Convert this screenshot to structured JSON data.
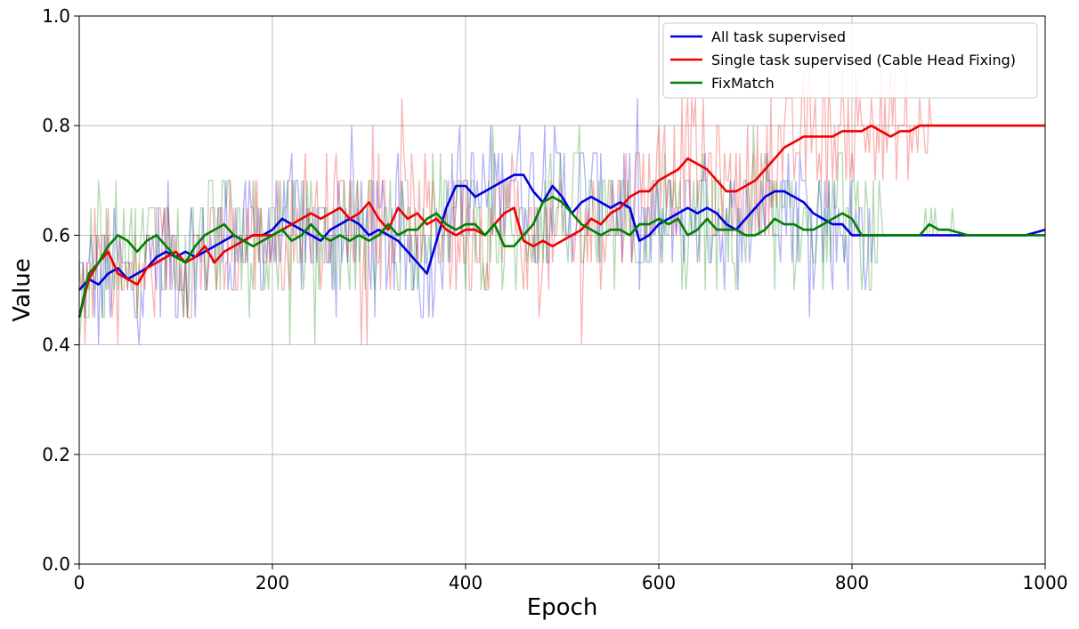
{
  "chart_data": {
    "type": "line",
    "title": "",
    "xlabel": "Epoch",
    "ylabel": "Value",
    "xlim": [
      0,
      1000
    ],
    "ylim": [
      0,
      1
    ],
    "xticks": [
      "0",
      "200",
      "400",
      "600",
      "800",
      "1000"
    ],
    "yticks": [
      "0.0",
      "0.2",
      "0.4",
      "0.6",
      "0.8",
      "1.0"
    ],
    "grid": true,
    "legend_position": "top-right",
    "series": [
      {
        "name": "All task supervised",
        "color": "#0000dd",
        "raw_visible": true,
        "x": [
          0,
          10,
          20,
          30,
          40,
          50,
          60,
          70,
          80,
          90,
          100,
          110,
          120,
          130,
          140,
          150,
          160,
          170,
          180,
          190,
          200,
          210,
          220,
          230,
          240,
          250,
          260,
          270,
          280,
          290,
          300,
          310,
          320,
          330,
          340,
          350,
          360,
          370,
          380,
          390,
          400,
          410,
          420,
          430,
          440,
          450,
          460,
          470,
          480,
          490,
          500,
          510,
          520,
          530,
          540,
          550,
          560,
          570,
          580,
          590,
          600,
          610,
          620,
          630,
          640,
          650,
          660,
          670,
          680,
          690,
          700,
          710,
          720,
          730,
          740,
          750,
          760,
          770,
          780,
          790,
          800,
          810,
          820,
          830,
          840,
          850,
          860,
          870,
          880,
          890,
          900,
          920,
          940,
          960,
          980,
          1000
        ],
        "y": [
          0.5,
          0.52,
          0.51,
          0.53,
          0.54,
          0.52,
          0.53,
          0.54,
          0.56,
          0.57,
          0.56,
          0.57,
          0.56,
          0.57,
          0.58,
          0.59,
          0.6,
          0.59,
          0.6,
          0.6,
          0.61,
          0.63,
          0.62,
          0.61,
          0.6,
          0.59,
          0.61,
          0.62,
          0.63,
          0.62,
          0.6,
          0.61,
          0.6,
          0.59,
          0.57,
          0.55,
          0.53,
          0.59,
          0.65,
          0.69,
          0.69,
          0.67,
          0.68,
          0.69,
          0.7,
          0.71,
          0.71,
          0.68,
          0.66,
          0.69,
          0.67,
          0.64,
          0.66,
          0.67,
          0.66,
          0.65,
          0.66,
          0.65,
          0.59,
          0.6,
          0.62,
          0.63,
          0.64,
          0.65,
          0.64,
          0.65,
          0.64,
          0.62,
          0.61,
          0.63,
          0.65,
          0.67,
          0.68,
          0.68,
          0.67,
          0.66,
          0.64,
          0.63,
          0.62,
          0.62,
          0.6,
          0.6,
          0.6,
          0.6,
          0.6,
          0.6,
          0.6,
          0.6,
          0.6,
          0.6,
          0.6,
          0.6,
          0.6,
          0.6,
          0.6,
          0.61
        ]
      },
      {
        "name": "Single task supervised (Cable Head Fixing)",
        "color": "#ee0000",
        "raw_visible": true,
        "x": [
          0,
          10,
          20,
          30,
          40,
          50,
          60,
          70,
          80,
          90,
          100,
          110,
          120,
          130,
          140,
          150,
          160,
          170,
          180,
          190,
          200,
          210,
          220,
          230,
          240,
          250,
          260,
          270,
          280,
          290,
          300,
          310,
          320,
          330,
          340,
          350,
          360,
          370,
          380,
          390,
          400,
          410,
          420,
          430,
          440,
          450,
          460,
          470,
          480,
          490,
          500,
          510,
          520,
          530,
          540,
          550,
          560,
          570,
          580,
          590,
          600,
          610,
          620,
          630,
          640,
          650,
          660,
          670,
          680,
          690,
          700,
          710,
          720,
          730,
          740,
          750,
          760,
          770,
          780,
          790,
          800,
          810,
          820,
          830,
          840,
          850,
          860,
          870,
          880,
          890,
          900,
          920,
          940,
          960,
          980,
          1000
        ],
        "y": [
          0.45,
          0.52,
          0.55,
          0.57,
          0.53,
          0.52,
          0.51,
          0.54,
          0.55,
          0.56,
          0.57,
          0.55,
          0.56,
          0.58,
          0.55,
          0.57,
          0.58,
          0.59,
          0.6,
          0.6,
          0.6,
          0.61,
          0.62,
          0.63,
          0.64,
          0.63,
          0.64,
          0.65,
          0.63,
          0.64,
          0.66,
          0.63,
          0.61,
          0.65,
          0.63,
          0.64,
          0.62,
          0.63,
          0.61,
          0.6,
          0.61,
          0.61,
          0.6,
          0.62,
          0.64,
          0.65,
          0.59,
          0.58,
          0.59,
          0.58,
          0.59,
          0.6,
          0.61,
          0.63,
          0.62,
          0.64,
          0.65,
          0.67,
          0.68,
          0.68,
          0.7,
          0.71,
          0.72,
          0.74,
          0.73,
          0.72,
          0.7,
          0.68,
          0.68,
          0.69,
          0.7,
          0.72,
          0.74,
          0.76,
          0.77,
          0.78,
          0.78,
          0.78,
          0.78,
          0.79,
          0.79,
          0.79,
          0.8,
          0.79,
          0.78,
          0.79,
          0.79,
          0.8,
          0.8,
          0.8,
          0.8,
          0.8,
          0.8,
          0.8,
          0.8,
          0.8
        ]
      },
      {
        "name": "FixMatch",
        "color": "#008000",
        "raw_visible": true,
        "x": [
          0,
          10,
          20,
          30,
          40,
          50,
          60,
          70,
          80,
          90,
          100,
          110,
          120,
          130,
          140,
          150,
          160,
          170,
          180,
          190,
          200,
          210,
          220,
          230,
          240,
          250,
          260,
          270,
          280,
          290,
          300,
          310,
          320,
          330,
          340,
          350,
          360,
          370,
          380,
          390,
          400,
          410,
          420,
          430,
          440,
          450,
          460,
          470,
          480,
          490,
          500,
          510,
          520,
          530,
          540,
          550,
          560,
          570,
          580,
          590,
          600,
          610,
          620,
          630,
          640,
          650,
          660,
          670,
          680,
          690,
          700,
          710,
          720,
          730,
          740,
          750,
          760,
          770,
          780,
          790,
          800,
          810,
          820,
          830,
          840,
          850,
          860,
          870,
          880,
          890,
          900,
          920,
          940,
          960,
          980,
          1000
        ],
        "y": [
          0.45,
          0.53,
          0.55,
          0.58,
          0.6,
          0.59,
          0.57,
          0.59,
          0.6,
          0.58,
          0.56,
          0.55,
          0.58,
          0.6,
          0.61,
          0.62,
          0.6,
          0.59,
          0.58,
          0.59,
          0.6,
          0.61,
          0.59,
          0.6,
          0.62,
          0.6,
          0.59,
          0.6,
          0.59,
          0.6,
          0.59,
          0.6,
          0.62,
          0.6,
          0.61,
          0.61,
          0.63,
          0.64,
          0.62,
          0.61,
          0.62,
          0.62,
          0.6,
          0.62,
          0.58,
          0.58,
          0.6,
          0.62,
          0.66,
          0.67,
          0.66,
          0.64,
          0.62,
          0.61,
          0.6,
          0.61,
          0.61,
          0.6,
          0.62,
          0.62,
          0.63,
          0.62,
          0.63,
          0.6,
          0.61,
          0.63,
          0.61,
          0.61,
          0.61,
          0.6,
          0.6,
          0.61,
          0.63,
          0.62,
          0.62,
          0.61,
          0.61,
          0.62,
          0.63,
          0.64,
          0.63,
          0.6,
          0.6,
          0.6,
          0.6,
          0.6,
          0.6,
          0.6,
          0.62,
          0.61,
          0.61,
          0.6,
          0.6,
          0.6,
          0.6,
          0.6
        ]
      }
    ]
  }
}
